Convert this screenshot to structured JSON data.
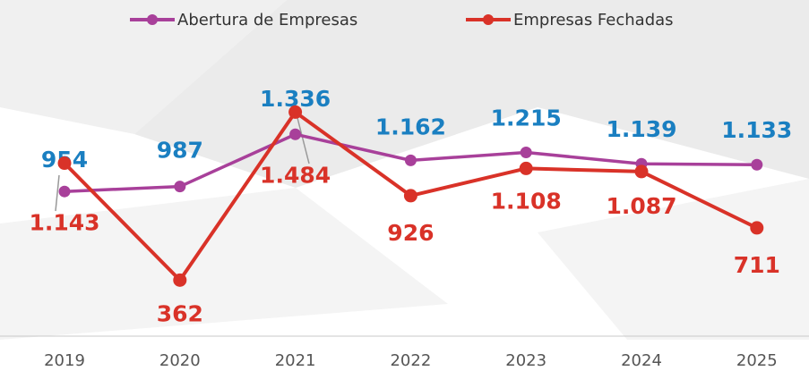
{
  "chart_data": {
    "type": "line",
    "categories": [
      "2019",
      "2020",
      "2021",
      "2022",
      "2023",
      "2024",
      "2025"
    ],
    "series": [
      {
        "name": "Abertura de Empresas",
        "color": "#a8409a",
        "label_color": "#1a7fc1",
        "values": [
          954,
          987,
          1336,
          1162,
          1215,
          1139,
          1133
        ],
        "value_labels": [
          "954",
          "987",
          "1.336",
          "1.162",
          "1.215",
          "1.139",
          "1.133"
        ]
      },
      {
        "name": "Empresas Fechadas",
        "color": "#d93228",
        "label_color": "#d93228",
        "values": [
          1143,
          362,
          1484,
          926,
          1108,
          1087,
          711
        ],
        "value_labels": [
          "1.143",
          "362",
          "1.484",
          "926",
          "1.108",
          "1.087",
          "711"
        ]
      }
    ],
    "ylim": [
      0,
      2200
    ],
    "legend": "top"
  }
}
